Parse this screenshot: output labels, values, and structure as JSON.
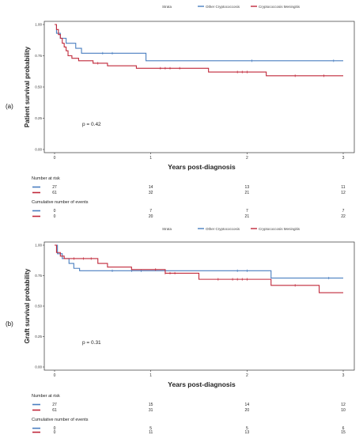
{
  "chart_data": [
    {
      "type": "line",
      "panel_label": "(a)",
      "legend_title": "Strata",
      "legend_position": "top",
      "ylabel": "Patient survival probability",
      "xlabel": "Years post-diagnosis",
      "xlim": [
        0,
        3
      ],
      "ylim": [
        0,
        1
      ],
      "x_ticks": [
        "0",
        "1",
        "2",
        "3"
      ],
      "y_ticks": [
        "0.00",
        "0.25",
        "0.50",
        "0.75",
        "1.00"
      ],
      "pvalue": "p = 0.42",
      "series": [
        {
          "name": "Other Cryptococcosis",
          "color": "#4a7fc0",
          "steps": [
            [
              0,
              1.0
            ],
            [
              0.02,
              0.93
            ],
            [
              0.06,
              0.89
            ],
            [
              0.12,
              0.85
            ],
            [
              0.22,
              0.81
            ],
            [
              0.28,
              0.77
            ],
            [
              0.95,
              0.71
            ],
            [
              3.0,
              0.71
            ]
          ],
          "censor": [
            0.5,
            0.6,
            2.05,
            2.9
          ]
        },
        {
          "name": "Cryptococcosis Meningitis",
          "color": "#c0283a",
          "steps": [
            [
              0,
              1.0
            ],
            [
              0.02,
              0.96
            ],
            [
              0.04,
              0.92
            ],
            [
              0.06,
              0.89
            ],
            [
              0.08,
              0.85
            ],
            [
              0.1,
              0.82
            ],
            [
              0.12,
              0.79
            ],
            [
              0.14,
              0.75
            ],
            [
              0.18,
              0.73
            ],
            [
              0.25,
              0.71
            ],
            [
              0.4,
              0.69
            ],
            [
              0.55,
              0.67
            ],
            [
              0.85,
              0.65
            ],
            [
              1.6,
              0.62
            ],
            [
              2.2,
              0.59
            ],
            [
              3.0,
              0.59
            ]
          ],
          "censor": [
            0.45,
            1.1,
            1.15,
            1.2,
            1.3,
            1.9,
            1.95,
            2.0,
            2.5,
            2.8
          ]
        }
      ],
      "risk_table": {
        "title": "Number at risk",
        "rows": [
          {
            "color": "#4a7fc0",
            "values": [
              "27",
              "14",
              "13",
              "11"
            ]
          },
          {
            "color": "#c0283a",
            "values": [
              "61",
              "32",
              "21",
              "12"
            ]
          }
        ]
      },
      "events_table": {
        "title": "Cumulative number of events",
        "rows": [
          {
            "color": "#4a7fc0",
            "values": [
              "0",
              "7",
              "7",
              "7"
            ]
          },
          {
            "color": "#c0283a",
            "values": [
              "0",
              "20",
              "21",
              "22"
            ]
          }
        ]
      }
    },
    {
      "type": "line",
      "panel_label": "(b)",
      "legend_title": "Strata",
      "legend_position": "top",
      "ylabel": "Graft survival probability",
      "xlabel": "Years post-diagnosis",
      "xlim": [
        0,
        3
      ],
      "ylim": [
        0,
        1
      ],
      "x_ticks": [
        "0",
        "1",
        "2",
        "3"
      ],
      "y_ticks": [
        "0.00",
        "0.25",
        "0.50",
        "0.75",
        "1.00"
      ],
      "pvalue": "p = 0.31",
      "series": [
        {
          "name": "Other Cryptococcosis",
          "color": "#4a7fc0",
          "steps": [
            [
              0,
              1.0
            ],
            [
              0.03,
              0.93
            ],
            [
              0.08,
              0.89
            ],
            [
              0.15,
              0.85
            ],
            [
              0.2,
              0.81
            ],
            [
              0.26,
              0.79
            ],
            [
              2.25,
              0.73
            ],
            [
              3.0,
              0.73
            ]
          ],
          "censor": [
            0.6,
            0.8,
            0.9,
            1.9,
            2.0,
            2.85
          ]
        },
        {
          "name": "Cryptococcosis Meningitis",
          "color": "#c0283a",
          "steps": [
            [
              0,
              1.0
            ],
            [
              0.02,
              0.94
            ],
            [
              0.06,
              0.91
            ],
            [
              0.1,
              0.89
            ],
            [
              0.45,
              0.85
            ],
            [
              0.55,
              0.82
            ],
            [
              0.8,
              0.8
            ],
            [
              1.15,
              0.77
            ],
            [
              1.5,
              0.72
            ],
            [
              2.25,
              0.67
            ],
            [
              2.75,
              0.61
            ],
            [
              3.0,
              0.61
            ]
          ],
          "censor": [
            0.2,
            0.3,
            0.38,
            1.05,
            1.15,
            1.2,
            1.25,
            1.7,
            1.85,
            1.9,
            1.95,
            2.0,
            2.5
          ]
        }
      ],
      "risk_table": {
        "title": "Number at risk",
        "rows": [
          {
            "color": "#4a7fc0",
            "values": [
              "27",
              "15",
              "14",
              "12"
            ]
          },
          {
            "color": "#c0283a",
            "values": [
              "61",
              "31",
              "20",
              "10"
            ]
          }
        ]
      },
      "events_table": {
        "title": "Cumulative number of events",
        "rows": [
          {
            "color": "#4a7fc0",
            "values": [
              "0",
              "5",
              "5",
              "6"
            ]
          },
          {
            "color": "#c0283a",
            "values": [
              "0",
              "11",
              "13",
              "15"
            ]
          }
        ]
      }
    }
  ]
}
